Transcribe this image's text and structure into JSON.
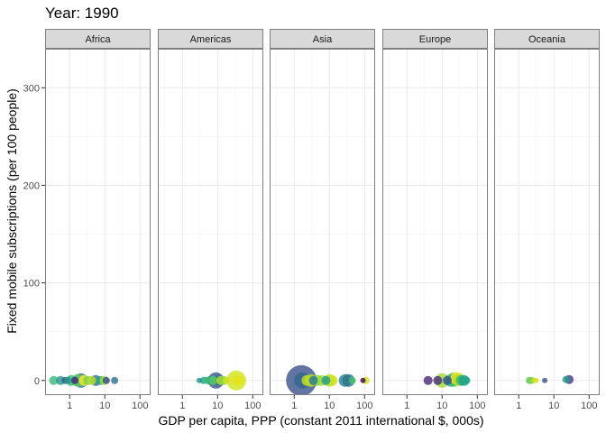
{
  "chart_data": {
    "type": "scatter",
    "title": "Year: 1990",
    "xlabel": "GDP per capita, PPP (constant 2011 international $, 000s)",
    "ylabel": "Fixed mobile subscriptions (per 100 people)",
    "x_scale": "log10",
    "xlim": [
      0.2,
      200
    ],
    "ylim": [
      -15,
      340
    ],
    "x_ticks": [
      1,
      10,
      100
    ],
    "x_tick_labels": [
      "1",
      "10",
      "100"
    ],
    "y_ticks": [
      0,
      100,
      200,
      300
    ],
    "y_tick_labels": [
      "0",
      "100",
      "200",
      "300"
    ],
    "grid": true,
    "legend": "none",
    "facets": [
      {
        "name": "Africa",
        "points": [
          {
            "x": 0.35,
            "y": 0,
            "size": 5,
            "color": "#3db87a"
          },
          {
            "x": 0.55,
            "y": 0,
            "size": 5,
            "color": "#26988a"
          },
          {
            "x": 0.75,
            "y": 0,
            "size": 4,
            "color": "#3b528b"
          },
          {
            "x": 0.9,
            "y": 0,
            "size": 4,
            "color": "#1f9e89"
          },
          {
            "x": 1.1,
            "y": 0,
            "size": 6,
            "color": "#35b779"
          },
          {
            "x": 1.4,
            "y": 0,
            "size": 4,
            "color": "#482878"
          },
          {
            "x": 1.7,
            "y": 0,
            "size": 7,
            "color": "#5ec962"
          },
          {
            "x": 2.1,
            "y": 0,
            "size": 8,
            "color": "#2a788e"
          },
          {
            "x": 2.6,
            "y": 0,
            "size": 6,
            "color": "#fde725"
          },
          {
            "x": 3.3,
            "y": 0,
            "size": 5,
            "color": "#6ece58"
          },
          {
            "x": 4.2,
            "y": 0,
            "size": 5,
            "color": "#b5de2b"
          },
          {
            "x": 5.5,
            "y": 0,
            "size": 6,
            "color": "#31688e"
          },
          {
            "x": 7.5,
            "y": 0,
            "size": 5,
            "color": "#22a884"
          },
          {
            "x": 9.5,
            "y": 0,
            "size": 5,
            "color": "#a0da39"
          },
          {
            "x": 11,
            "y": 0,
            "size": 4,
            "color": "#3e4989"
          },
          {
            "x": 19,
            "y": 0,
            "size": 4,
            "color": "#2c728e"
          }
        ]
      },
      {
        "name": "Americas",
        "points": [
          {
            "x": 3,
            "y": 0,
            "size": 3,
            "color": "#21918c"
          },
          {
            "x": 4,
            "y": 0,
            "size": 4,
            "color": "#1fa187"
          },
          {
            "x": 5,
            "y": 0,
            "size": 4,
            "color": "#3db87a"
          },
          {
            "x": 6.2,
            "y": 0,
            "size": 5,
            "color": "#22a884"
          },
          {
            "x": 7.5,
            "y": 0,
            "size": 5,
            "color": "#5ec962"
          },
          {
            "x": 9,
            "y": 0,
            "size": 9,
            "color": "#3b528b"
          },
          {
            "x": 10.5,
            "y": 0,
            "size": 6,
            "color": "#2a788e"
          },
          {
            "x": 12.5,
            "y": 0,
            "size": 5,
            "color": "#c2df23"
          },
          {
            "x": 15,
            "y": 0,
            "size": 5,
            "color": "#84d44b"
          },
          {
            "x": 18,
            "y": 0,
            "size": 4,
            "color": "#d8e219"
          },
          {
            "x": 34,
            "y": 0,
            "size": 11,
            "color": "#d2e21b"
          },
          {
            "x": 38,
            "y": 0,
            "size": 6,
            "color": "#e5e419"
          }
        ]
      },
      {
        "name": "Asia",
        "points": [
          {
            "x": 1.6,
            "y": 0,
            "size": 17,
            "color": "#3b528b"
          },
          {
            "x": 1.7,
            "y": 0,
            "size": 9,
            "color": "#31688e"
          },
          {
            "x": 2.3,
            "y": 0,
            "size": 6,
            "color": "#c2df23"
          },
          {
            "x": 3,
            "y": 0,
            "size": 7,
            "color": "#bddf26"
          },
          {
            "x": 3.5,
            "y": 0,
            "size": 5,
            "color": "#2a788e"
          },
          {
            "x": 4.5,
            "y": 0,
            "size": 6,
            "color": "#7ad151"
          },
          {
            "x": 6,
            "y": 0,
            "size": 6,
            "color": "#a0da39"
          },
          {
            "x": 8,
            "y": 0,
            "size": 5,
            "color": "#1f9e89"
          },
          {
            "x": 10,
            "y": 0,
            "size": 7,
            "color": "#b5de2b"
          },
          {
            "x": 12,
            "y": 0,
            "size": 6,
            "color": "#d0e11c"
          },
          {
            "x": 28,
            "y": 0,
            "size": 7,
            "color": "#26828e"
          },
          {
            "x": 35,
            "y": 0,
            "size": 7,
            "color": "#2c728e"
          },
          {
            "x": 45,
            "y": 0,
            "size": 4,
            "color": "#4ac16d"
          },
          {
            "x": 90,
            "y": 0,
            "size": 3,
            "color": "#440154"
          },
          {
            "x": 110,
            "y": 0,
            "size": 4,
            "color": "#d2e21b"
          }
        ]
      },
      {
        "name": "Europe",
        "points": [
          {
            "x": 4,
            "y": 0,
            "size": 5,
            "color": "#482878"
          },
          {
            "x": 7.5,
            "y": 0,
            "size": 5,
            "color": "#472d7b"
          },
          {
            "x": 10,
            "y": 0,
            "size": 8,
            "color": "#a0da39"
          },
          {
            "x": 14,
            "y": 0,
            "size": 5,
            "color": "#3b528b"
          },
          {
            "x": 18,
            "y": 0,
            "size": 7,
            "color": "#2db27d"
          },
          {
            "x": 22,
            "y": 1,
            "size": 8,
            "color": "#6ece58"
          },
          {
            "x": 26,
            "y": 2,
            "size": 7,
            "color": "#fde725"
          },
          {
            "x": 30,
            "y": 1,
            "size": 7,
            "color": "#c2df23"
          },
          {
            "x": 35,
            "y": 0,
            "size": 6,
            "color": "#35b779"
          },
          {
            "x": 42,
            "y": 0,
            "size": 6,
            "color": "#1fa187"
          },
          {
            "x": 50,
            "y": 0,
            "size": 4,
            "color": "#20a386"
          }
        ]
      },
      {
        "name": "Oceania",
        "points": [
          {
            "x": 2,
            "y": 0,
            "size": 4,
            "color": "#5ec962"
          },
          {
            "x": 2.3,
            "y": 0,
            "size": 4,
            "color": "#7ad151"
          },
          {
            "x": 2.7,
            "y": 0,
            "size": 3,
            "color": "#c8e020"
          },
          {
            "x": 3.1,
            "y": 0,
            "size": 3,
            "color": "#d8e219"
          },
          {
            "x": 5.5,
            "y": 0,
            "size": 3,
            "color": "#3b528b"
          },
          {
            "x": 22,
            "y": 1,
            "size": 4,
            "color": "#1f9e89"
          },
          {
            "x": 27,
            "y": 1,
            "size": 5,
            "color": "#443983"
          }
        ]
      }
    ]
  },
  "colors": {
    "panel_border": "#7f7f7f",
    "strip_fill": "#d9d9d9",
    "grid_major": "#ebebeb",
    "grid_minor": "#f2f2f2"
  }
}
